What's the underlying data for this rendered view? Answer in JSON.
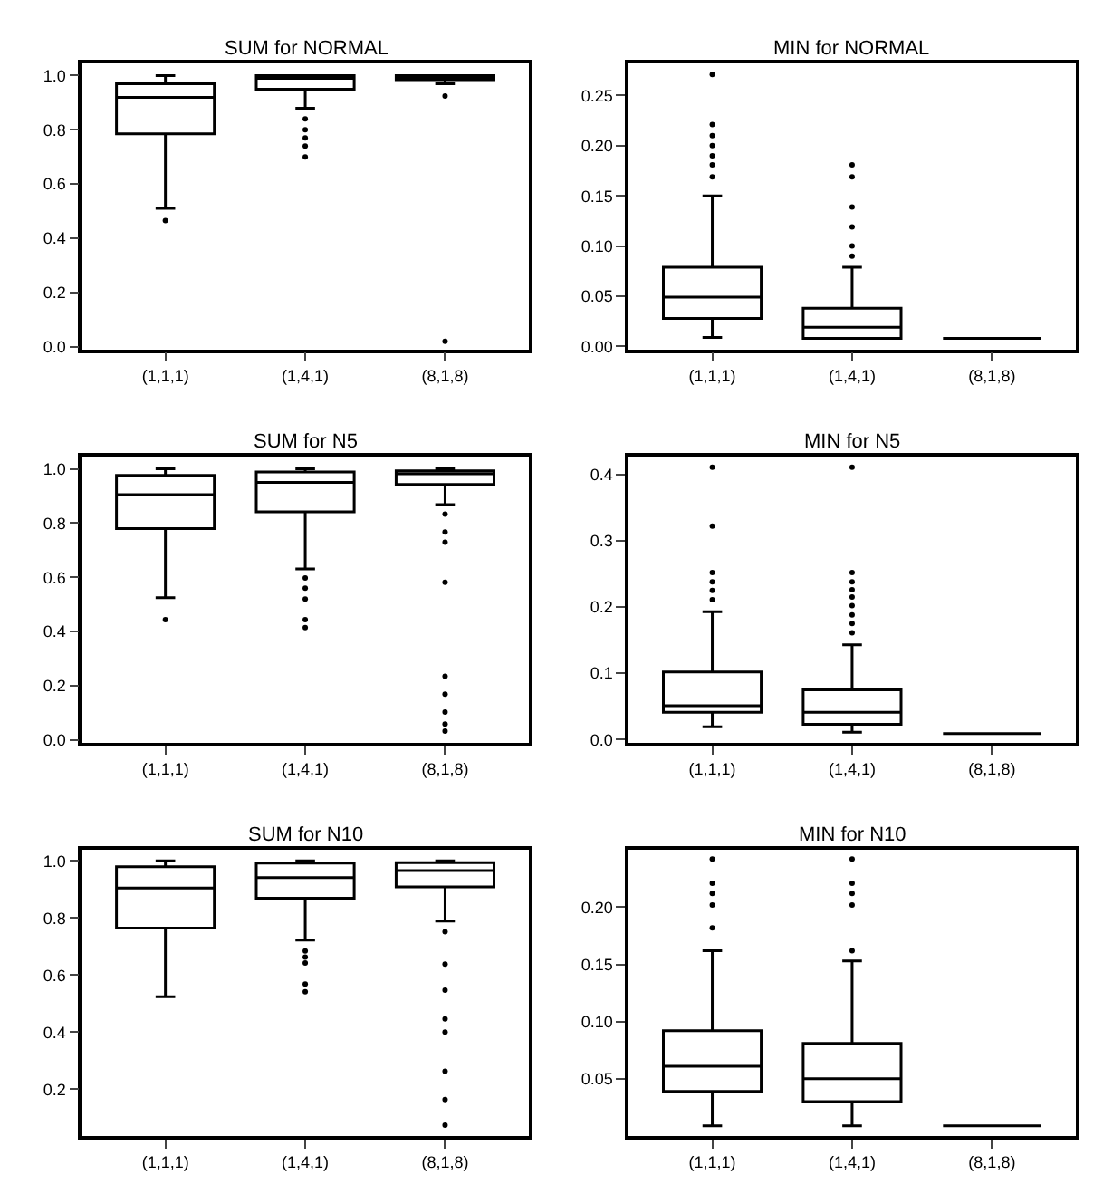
{
  "chart_data": [
    {
      "type": "box",
      "title": "SUM for NORMAL",
      "categories": [
        "(1,1,1)",
        "(1,4,1)",
        "(8,1,8)"
      ],
      "grid": false,
      "ylim": [
        -0.01,
        1.045
      ],
      "yticks": [
        {
          "value": 0,
          "label": "0.0"
        },
        0.2,
        0.4,
        0.6,
        0.8,
        {
          "value": 1,
          "label": "1.0"
        }
      ],
      "boxes": [
        {
          "low": 0.51,
          "q1": 0.785,
          "median": 0.92,
          "q3": 0.97,
          "high": 1.0,
          "outliers": [
            0.465
          ]
        },
        {
          "low": 0.88,
          "q1": 0.95,
          "median": 0.99,
          "q3": 1.0,
          "high": 1.0,
          "outliers": [
            0.84,
            0.8,
            0.77,
            0.74,
            0.7
          ]
        },
        {
          "low": 0.97,
          "q1": 0.985,
          "median": 0.995,
          "q3": 1.0,
          "high": 1.0,
          "outliers": [
            0.925,
            0.02
          ]
        }
      ]
    },
    {
      "type": "box",
      "title": "MIN for NORMAL",
      "categories": [
        "(1,1,1)",
        "(1,4,1)",
        "(8,1,8)"
      ],
      "grid": false,
      "ylim": [
        -0.003,
        0.282
      ],
      "yticks": [
        {
          "value": 0,
          "label": "0.00"
        },
        0.05,
        {
          "value": 0.1,
          "label": "0.10"
        },
        0.15,
        {
          "value": 0.2,
          "label": "0.20"
        },
        0.25
      ],
      "boxes": [
        {
          "low": 0.009,
          "q1": 0.028,
          "median": 0.049,
          "q3": 0.079,
          "high": 0.15,
          "outliers": [
            0.169,
            0.181,
            0.19,
            0.2,
            0.21,
            0.221,
            0.271
          ]
        },
        {
          "low": 0.008,
          "q1": 0.008,
          "median": 0.019,
          "q3": 0.038,
          "high": 0.079,
          "outliers": [
            0.09,
            0.1,
            0.119,
            0.139,
            0.169,
            0.181
          ]
        },
        {
          "low": 0.008,
          "q1": 0.008,
          "median": 0.008,
          "q3": 0.008,
          "high": 0.008
        }
      ]
    },
    {
      "type": "box",
      "title": "SUM for N5",
      "categories": [
        "(1,1,1)",
        "(1,4,1)",
        "(8,1,8)"
      ],
      "grid": false,
      "ylim": [
        -0.01,
        1.045
      ],
      "yticks": [
        {
          "value": 0,
          "label": "0.0"
        },
        0.2,
        0.4,
        0.6,
        0.8,
        {
          "value": 1,
          "label": "1.0"
        }
      ],
      "boxes": [
        {
          "low": 0.525,
          "q1": 0.78,
          "median": 0.905,
          "q3": 0.976,
          "high": 1.0,
          "outliers": [
            0.444
          ]
        },
        {
          "low": 0.631,
          "q1": 0.842,
          "median": 0.95,
          "q3": 0.989,
          "high": 1.0,
          "outliers": [
            0.598,
            0.56,
            0.52,
            0.444,
            0.415
          ]
        },
        {
          "low": 0.868,
          "q1": 0.943,
          "median": 0.982,
          "q3": 0.993,
          "high": 1.0,
          "outliers": [
            0.833,
            0.767,
            0.73,
            0.582,
            0.235,
            0.169,
            0.103,
            0.059,
            0.033
          ]
        }
      ]
    },
    {
      "type": "box",
      "title": "MIN for N5",
      "categories": [
        "(1,1,1)",
        "(1,4,1)",
        "(8,1,8)"
      ],
      "grid": false,
      "ylim": [
        -0.005,
        0.427
      ],
      "yticks": [
        {
          "value": 0,
          "label": "0.0"
        },
        0.1,
        0.2,
        0.3,
        0.4
      ],
      "boxes": [
        {
          "low": 0.019,
          "q1": 0.041,
          "median": 0.051,
          "q3": 0.102,
          "high": 0.193,
          "outliers": [
            0.211,
            0.225,
            0.238,
            0.252,
            0.322,
            0.411
          ]
        },
        {
          "low": 0.011,
          "q1": 0.023,
          "median": 0.041,
          "q3": 0.075,
          "high": 0.143,
          "outliers": [
            0.161,
            0.175,
            0.188,
            0.202,
            0.215,
            0.226,
            0.238,
            0.252,
            0.411
          ]
        },
        {
          "low": 0.009,
          "q1": 0.009,
          "median": 0.009,
          "q3": 0.009,
          "high": 0.009
        }
      ]
    },
    {
      "type": "box",
      "title": "SUM for N10",
      "categories": [
        "(1,1,1)",
        "(1,4,1)",
        "(8,1,8)"
      ],
      "grid": false,
      "ylim": [
        0.036,
        1.038
      ],
      "yticks": [
        0.2,
        0.4,
        0.6,
        0.8,
        {
          "value": 1,
          "label": "1.0"
        }
      ],
      "boxes": [
        {
          "low": 0.524,
          "q1": 0.764,
          "median": 0.905,
          "q3": 0.979,
          "high": 1.0
        },
        {
          "low": 0.722,
          "q1": 0.869,
          "median": 0.941,
          "q3": 0.992,
          "high": 1.0,
          "outliers": [
            0.684,
            0.663,
            0.642,
            0.568,
            0.541
          ]
        },
        {
          "low": 0.789,
          "q1": 0.909,
          "median": 0.966,
          "q3": 0.994,
          "high": 1.0,
          "outliers": [
            0.752,
            0.638,
            0.547,
            0.446,
            0.4,
            0.263,
            0.164,
            0.074
          ]
        }
      ]
    },
    {
      "type": "box",
      "title": "MIN for N10",
      "categories": [
        "(1,1,1)",
        "(1,4,1)",
        "(8,1,8)"
      ],
      "grid": false,
      "ylim": [
        0.0,
        0.25
      ],
      "yticks": [
        0.05,
        {
          "value": 0.1,
          "label": "0.10"
        },
        0.15,
        {
          "value": 0.2,
          "label": "0.20"
        }
      ],
      "boxes": [
        {
          "low": 0.009,
          "q1": 0.039,
          "median": 0.061,
          "q3": 0.092,
          "high": 0.162,
          "outliers": [
            0.182,
            0.202,
            0.212,
            0.221,
            0.242
          ]
        },
        {
          "low": 0.009,
          "q1": 0.03,
          "median": 0.05,
          "q3": 0.081,
          "high": 0.153,
          "outliers": [
            0.162,
            0.202,
            0.212,
            0.221,
            0.242
          ]
        },
        {
          "low": 0.009,
          "q1": 0.009,
          "median": 0.009,
          "q3": 0.009,
          "high": 0.009
        }
      ]
    }
  ]
}
